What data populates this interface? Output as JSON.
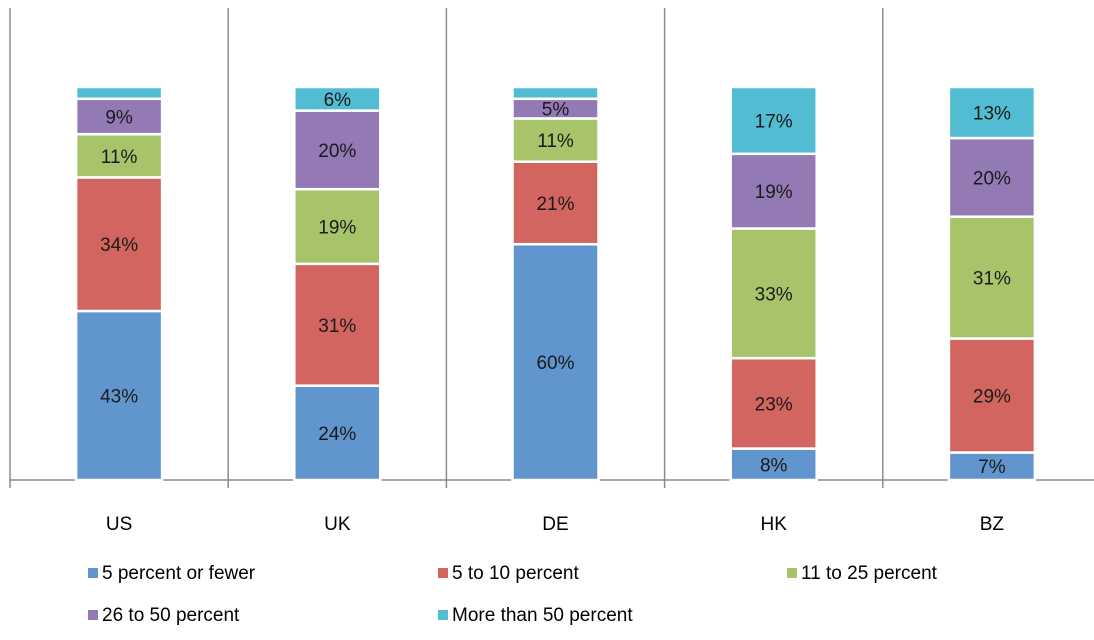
{
  "chart_data": {
    "type": "bar",
    "stacked": true,
    "title": "",
    "xlabel": "",
    "ylabel": "",
    "ylim": [
      0,
      100
    ],
    "grid": false,
    "legend_position": "bottom",
    "categories": [
      "US",
      "UK",
      "DE",
      "HK",
      "BZ"
    ],
    "series": [
      {
        "name": "5 percent or fewer",
        "color": "#6096CD",
        "values": [
          43,
          24,
          60,
          8,
          7
        ],
        "labels": [
          "43%",
          "24%",
          "60%",
          "8%",
          "7%"
        ]
      },
      {
        "name": "5 to 10 percent",
        "color": "#D2655F",
        "values": [
          34,
          31,
          21,
          23,
          29
        ],
        "labels": [
          "34%",
          "31%",
          "21%",
          "23%",
          "29%"
        ]
      },
      {
        "name": "11 to 25 percent",
        "color": "#A8C46B",
        "values": [
          11,
          19,
          11,
          33,
          31
        ],
        "labels": [
          "11%",
          "19%",
          "11%",
          "33%",
          "31%"
        ]
      },
      {
        "name": "26 to 50 percent",
        "color": "#937AB5",
        "values": [
          9,
          20,
          5,
          19,
          20
        ],
        "labels": [
          "9%",
          "20%",
          "5%",
          "19%",
          "20%"
        ]
      },
      {
        "name": "More than 50 percent",
        "color": "#52BCD2",
        "values": [
          3,
          6,
          3,
          17,
          13
        ],
        "labels": [
          "",
          "6%",
          "",
          "17%",
          "13%"
        ]
      }
    ]
  }
}
